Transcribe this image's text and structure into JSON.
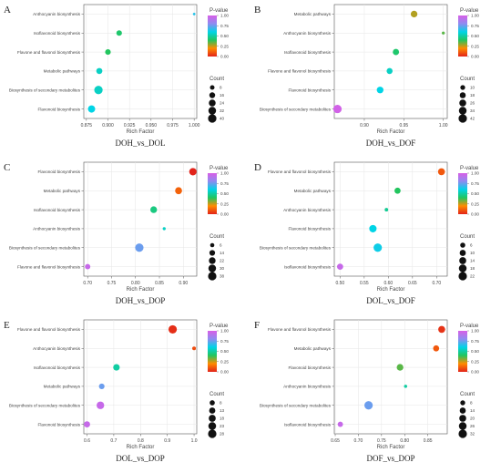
{
  "colorbar_ticks": [
    "1.00",
    "0.75",
    "0.50",
    "0.25",
    "0.00"
  ],
  "colors": {
    "pvalue_gradient": [
      "#e2231a",
      "#ff8c00",
      "#22c55e",
      "#00d4e6",
      "#8f8bf0",
      "#d85ee6"
    ],
    "panel_border": "#555555",
    "text": "#444444"
  },
  "chart_data": [
    {
      "type": "scatter",
      "panel_letter": "A",
      "title": "DOH_vs_DOL",
      "xlabel": "Rich Factor",
      "ylabel": "",
      "colorbar_label": "P-value",
      "size_label": "Count",
      "categories": [
        "Anthocyanin biosynthesis",
        "Isoflavonoid biosynthesis",
        "Flavone and flavonol biosynthesis",
        "Metabolic pathways",
        "Biosynthesis of secondary metabolites",
        "Flavonoid biosynthesis"
      ],
      "x": [
        1.0,
        0.913,
        0.9,
        0.89,
        0.889,
        0.881
      ],
      "pvalue": [
        0.65,
        0.42,
        0.4,
        0.55,
        0.55,
        0.6
      ],
      "count": [
        1,
        14,
        14,
        18,
        40,
        28
      ],
      "xlim": [
        0.872,
        1.003
      ],
      "xticks": [
        0.875,
        0.9,
        0.925,
        0.95,
        0.975,
        1.0
      ],
      "xtick_labels": [
        "0.875",
        "0.900",
        "0.925",
        "0.950",
        "0.975",
        "1.000"
      ],
      "size_legend": [
        8,
        16,
        24,
        32,
        40
      ],
      "grid": true
    },
    {
      "type": "scatter",
      "panel_letter": "B",
      "title": "DOH_vs_DOF",
      "xlabel": "Rich Factor",
      "ylabel": "",
      "colorbar_label": "P-value",
      "size_label": "Count",
      "categories": [
        "Metabolic pathways",
        "Anthocyanin biosynthesis",
        "Isoflavonoid biosynthesis",
        "Flavone and flavonol biosynthesis",
        "Flavonoid biosynthesis",
        "Biosynthesis of secondary metabolites"
      ],
      "x": [
        0.963,
        1.0,
        0.94,
        0.932,
        0.92,
        0.866
      ],
      "pvalue": [
        0.27,
        0.35,
        0.42,
        0.55,
        0.6,
        0.98
      ],
      "count": [
        24,
        2,
        20,
        18,
        24,
        42
      ],
      "xlim": [
        0.862,
        1.005
      ],
      "xticks": [
        0.9,
        0.95,
        1.0
      ],
      "xtick_labels": [
        "0.90",
        "0.95",
        "1.00"
      ],
      "size_legend": [
        10,
        18,
        26,
        34,
        42
      ],
      "grid": true
    },
    {
      "type": "scatter",
      "panel_letter": "C",
      "title": "DOH_vs_DOP",
      "xlabel": "Rich Factor",
      "ylabel": "",
      "colorbar_label": "P-value",
      "size_label": "Count",
      "categories": [
        "Flavonoid biosynthesis",
        "Metabolic pathways",
        "Isoflavonoid biosynthesis",
        "Anthocyanin biosynthesis",
        "Biosynthesis of secondary metabolites",
        "Flavone and flavonol biosynthesis"
      ],
      "x": [
        0.92,
        0.89,
        0.838,
        0.86,
        0.808,
        0.7
      ],
      "pvalue": [
        0.0,
        0.12,
        0.45,
        0.55,
        0.75,
        0.95
      ],
      "count": [
        28,
        24,
        22,
        2,
        38,
        12
      ],
      "xlim": [
        0.692,
        0.928
      ],
      "xticks": [
        0.7,
        0.75,
        0.8,
        0.85,
        0.9
      ],
      "xtick_labels": [
        "0.70",
        "0.75",
        "0.80",
        "0.85",
        "0.90"
      ],
      "size_legend": [
        6,
        14,
        22,
        30,
        38
      ],
      "grid": true
    },
    {
      "type": "scatter",
      "panel_letter": "D",
      "title": "DOL_vs_DOF",
      "xlabel": "Rich Factor",
      "ylabel": "",
      "colorbar_label": "P-value",
      "size_label": "Count",
      "categories": [
        "Flavone and flavonol biosynthesis",
        "Metabolic pathways",
        "Anthocyanin biosynthesis",
        "Flavonoid biosynthesis",
        "Biosynthesis of secondary metabolites",
        "Isoflavonoid biosynthesis"
      ],
      "x": [
        0.71,
        0.619,
        0.596,
        0.568,
        0.578,
        0.5
      ],
      "pvalue": [
        0.1,
        0.4,
        0.48,
        0.6,
        0.62,
        0.95
      ],
      "count": [
        14,
        10,
        2,
        16,
        22,
        10
      ],
      "xlim": [
        0.488,
        0.722
      ],
      "xticks": [
        0.5,
        0.55,
        0.6,
        0.65,
        0.7
      ],
      "xtick_labels": [
        "0.50",
        "0.55",
        "0.60",
        "0.65",
        "0.70"
      ],
      "size_legend": [
        6,
        10,
        14,
        18,
        22
      ],
      "grid": true
    },
    {
      "type": "scatter",
      "panel_letter": "E",
      "title": "DOL_vs_DOP",
      "xlabel": "Rich Factor",
      "ylabel": "",
      "colorbar_label": "P-value",
      "size_label": "Count",
      "categories": [
        "Flavone and flavonol biosynthesis",
        "Anthocyanin biosynthesis",
        "Isoflavonoid biosynthesis",
        "Metabolic pathways",
        "Biosynthesis of secondary metabolites",
        "Flavonoid biosynthesis"
      ],
      "x": [
        0.92,
        1.0,
        0.71,
        0.655,
        0.65,
        0.6
      ],
      "pvalue": [
        0.02,
        0.08,
        0.5,
        0.75,
        0.95,
        0.95
      ],
      "count": [
        28,
        3,
        15,
        10,
        22,
        13
      ],
      "xlim": [
        0.588,
        1.01
      ],
      "xticks": [
        0.6,
        0.7,
        0.8,
        0.9,
        1.0
      ],
      "xtick_labels": [
        "0.6",
        "0.7",
        "0.8",
        "0.9",
        "1.0"
      ],
      "size_legend": [
        8,
        13,
        18,
        23,
        28
      ],
      "grid": true
    },
    {
      "type": "scatter",
      "panel_letter": "F",
      "title": "DOF_vs_DOP",
      "xlabel": "Rich Factor",
      "ylabel": "",
      "colorbar_label": "P-value",
      "size_label": "Count",
      "categories": [
        "Flavone and flavonol biosynthesis",
        "Metabolic pathways",
        "Flavonoid biosynthesis",
        "Anthocyanin biosynthesis",
        "Biosynthesis of secondary metabolites",
        "Isoflavonoid biosynthesis"
      ],
      "x": [
        0.88,
        0.868,
        0.79,
        0.802,
        0.722,
        0.661
      ],
      "pvalue": [
        0.03,
        0.1,
        0.35,
        0.5,
        0.75,
        0.95
      ],
      "count": [
        20,
        14,
        18,
        2,
        32,
        10
      ],
      "xlim": [
        0.648,
        0.892
      ],
      "xticks": [
        0.65,
        0.7,
        0.75,
        0.8,
        0.85
      ],
      "xtick_labels": [
        "0.65",
        "0.70",
        "0.75",
        "0.80",
        "0.85"
      ],
      "size_legend": [
        8,
        14,
        20,
        26,
        32
      ],
      "grid": true
    }
  ]
}
